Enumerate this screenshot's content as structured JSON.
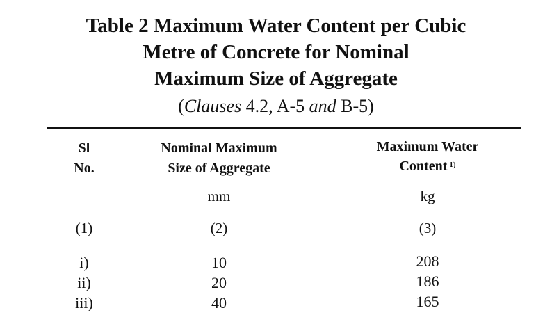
{
  "table": {
    "title_lines": [
      "Table 2 Maximum Water Content per Cubic",
      "Metre of Concrete for Nominal",
      "Maximum Size of Aggregate"
    ],
    "clauses": {
      "open": "(",
      "word1": "Clauses",
      "ref1": " 4.2, A-5 ",
      "word2": "and",
      "ref2": " B-5)"
    },
    "headers": {
      "sl_line1": "Sl",
      "sl_line2": "No.",
      "size_line1": "Nominal Maximum",
      "size_line2": "Size of Aggregate",
      "water_line1": "Maximum Water",
      "water_line2": "Content",
      "water_footnote": "1)"
    },
    "units": {
      "size": "mm",
      "water": "kg"
    },
    "column_numbers": [
      "(1)",
      "(2)",
      "(3)"
    ],
    "rows": [
      {
        "sl": "i)",
        "size": "10",
        "water": "208"
      },
      {
        "sl": "ii)",
        "size": "20",
        "water": "186"
      },
      {
        "sl": "iii)",
        "size": "40",
        "water": "165"
      }
    ]
  }
}
